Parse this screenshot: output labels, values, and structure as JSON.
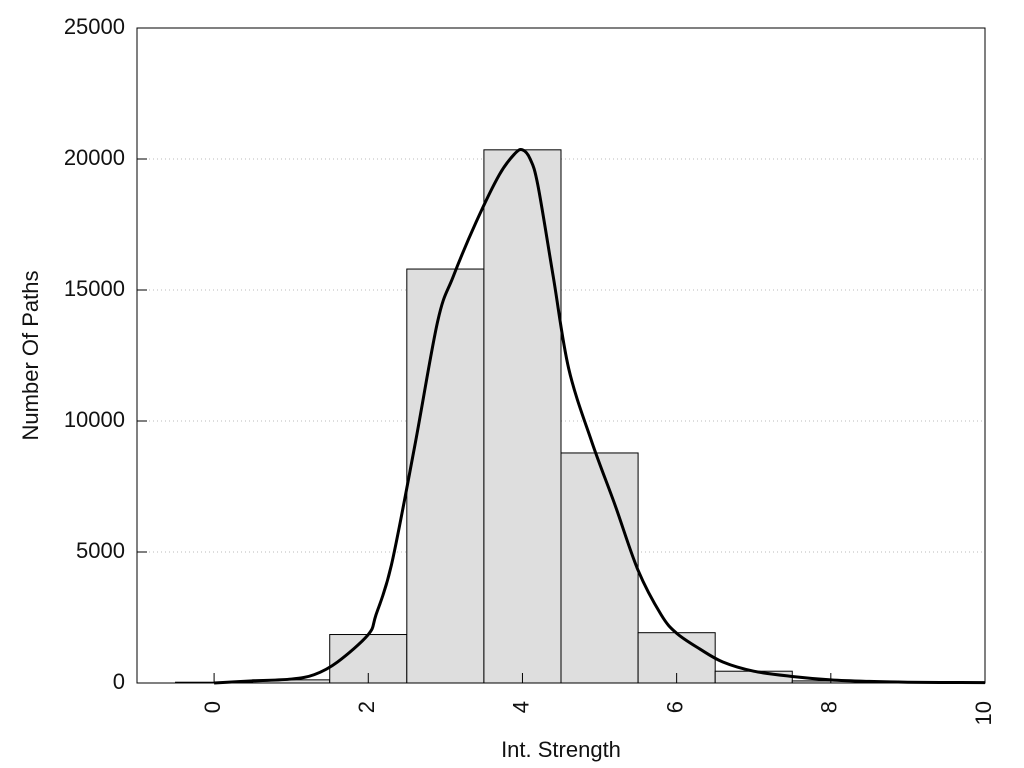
{
  "chart_data": {
    "type": "bar",
    "title": "",
    "xlabel": "Int. Strength",
    "ylabel": "Number Of Paths",
    "xlim": [
      -1,
      10
    ],
    "ylim": [
      0,
      25000
    ],
    "x_ticks": [
      0,
      2,
      4,
      6,
      8,
      10
    ],
    "x_tick_labels": [
      "0",
      "2",
      "4",
      "6",
      "8",
      "10"
    ],
    "y_ticks": [
      0,
      5000,
      10000,
      15000,
      20000,
      25000
    ],
    "y_tick_labels": [
      "0",
      "5000",
      "10000",
      "15000",
      "20000",
      "25000"
    ],
    "grid": "horizontal dotted",
    "bar_width": 1,
    "bar_color": "#dedede",
    "bars": [
      {
        "x": 0,
        "value": 30
      },
      {
        "x": 1,
        "value": 120
      },
      {
        "x": 2,
        "value": 1850
      },
      {
        "x": 3,
        "value": 15800
      },
      {
        "x": 4,
        "value": 20350
      },
      {
        "x": 5,
        "value": 8780
      },
      {
        "x": 6,
        "value": 1920
      },
      {
        "x": 7,
        "value": 450
      },
      {
        "x": 8,
        "value": 80
      },
      {
        "x": 9,
        "value": 30
      }
    ],
    "curve": {
      "color": "#000000",
      "points": [
        [
          0,
          0
        ],
        [
          0.5,
          80
        ],
        [
          1,
          150
        ],
        [
          1.3,
          320
        ],
        [
          1.6,
          800
        ],
        [
          2,
          1850
        ],
        [
          2.1,
          2600
        ],
        [
          2.3,
          4500
        ],
        [
          2.6,
          9000
        ],
        [
          2.9,
          13800
        ],
        [
          3.1,
          15500
        ],
        [
          3.4,
          17600
        ],
        [
          3.7,
          19400
        ],
        [
          3.9,
          20200
        ],
        [
          4.0,
          20350
        ],
        [
          4.1,
          20000
        ],
        [
          4.2,
          19000
        ],
        [
          4.4,
          15500
        ],
        [
          4.6,
          12000
        ],
        [
          4.9,
          9200
        ],
        [
          5.2,
          6800
        ],
        [
          5.5,
          4300
        ],
        [
          5.8,
          2600
        ],
        [
          6.0,
          1900
        ],
        [
          6.3,
          1300
        ],
        [
          6.6,
          800
        ],
        [
          7.0,
          450
        ],
        [
          7.5,
          250
        ],
        [
          8.0,
          120
        ],
        [
          8.5,
          60
        ],
        [
          9.0,
          30
        ],
        [
          9.5,
          20
        ],
        [
          10.0,
          15
        ]
      ]
    }
  }
}
